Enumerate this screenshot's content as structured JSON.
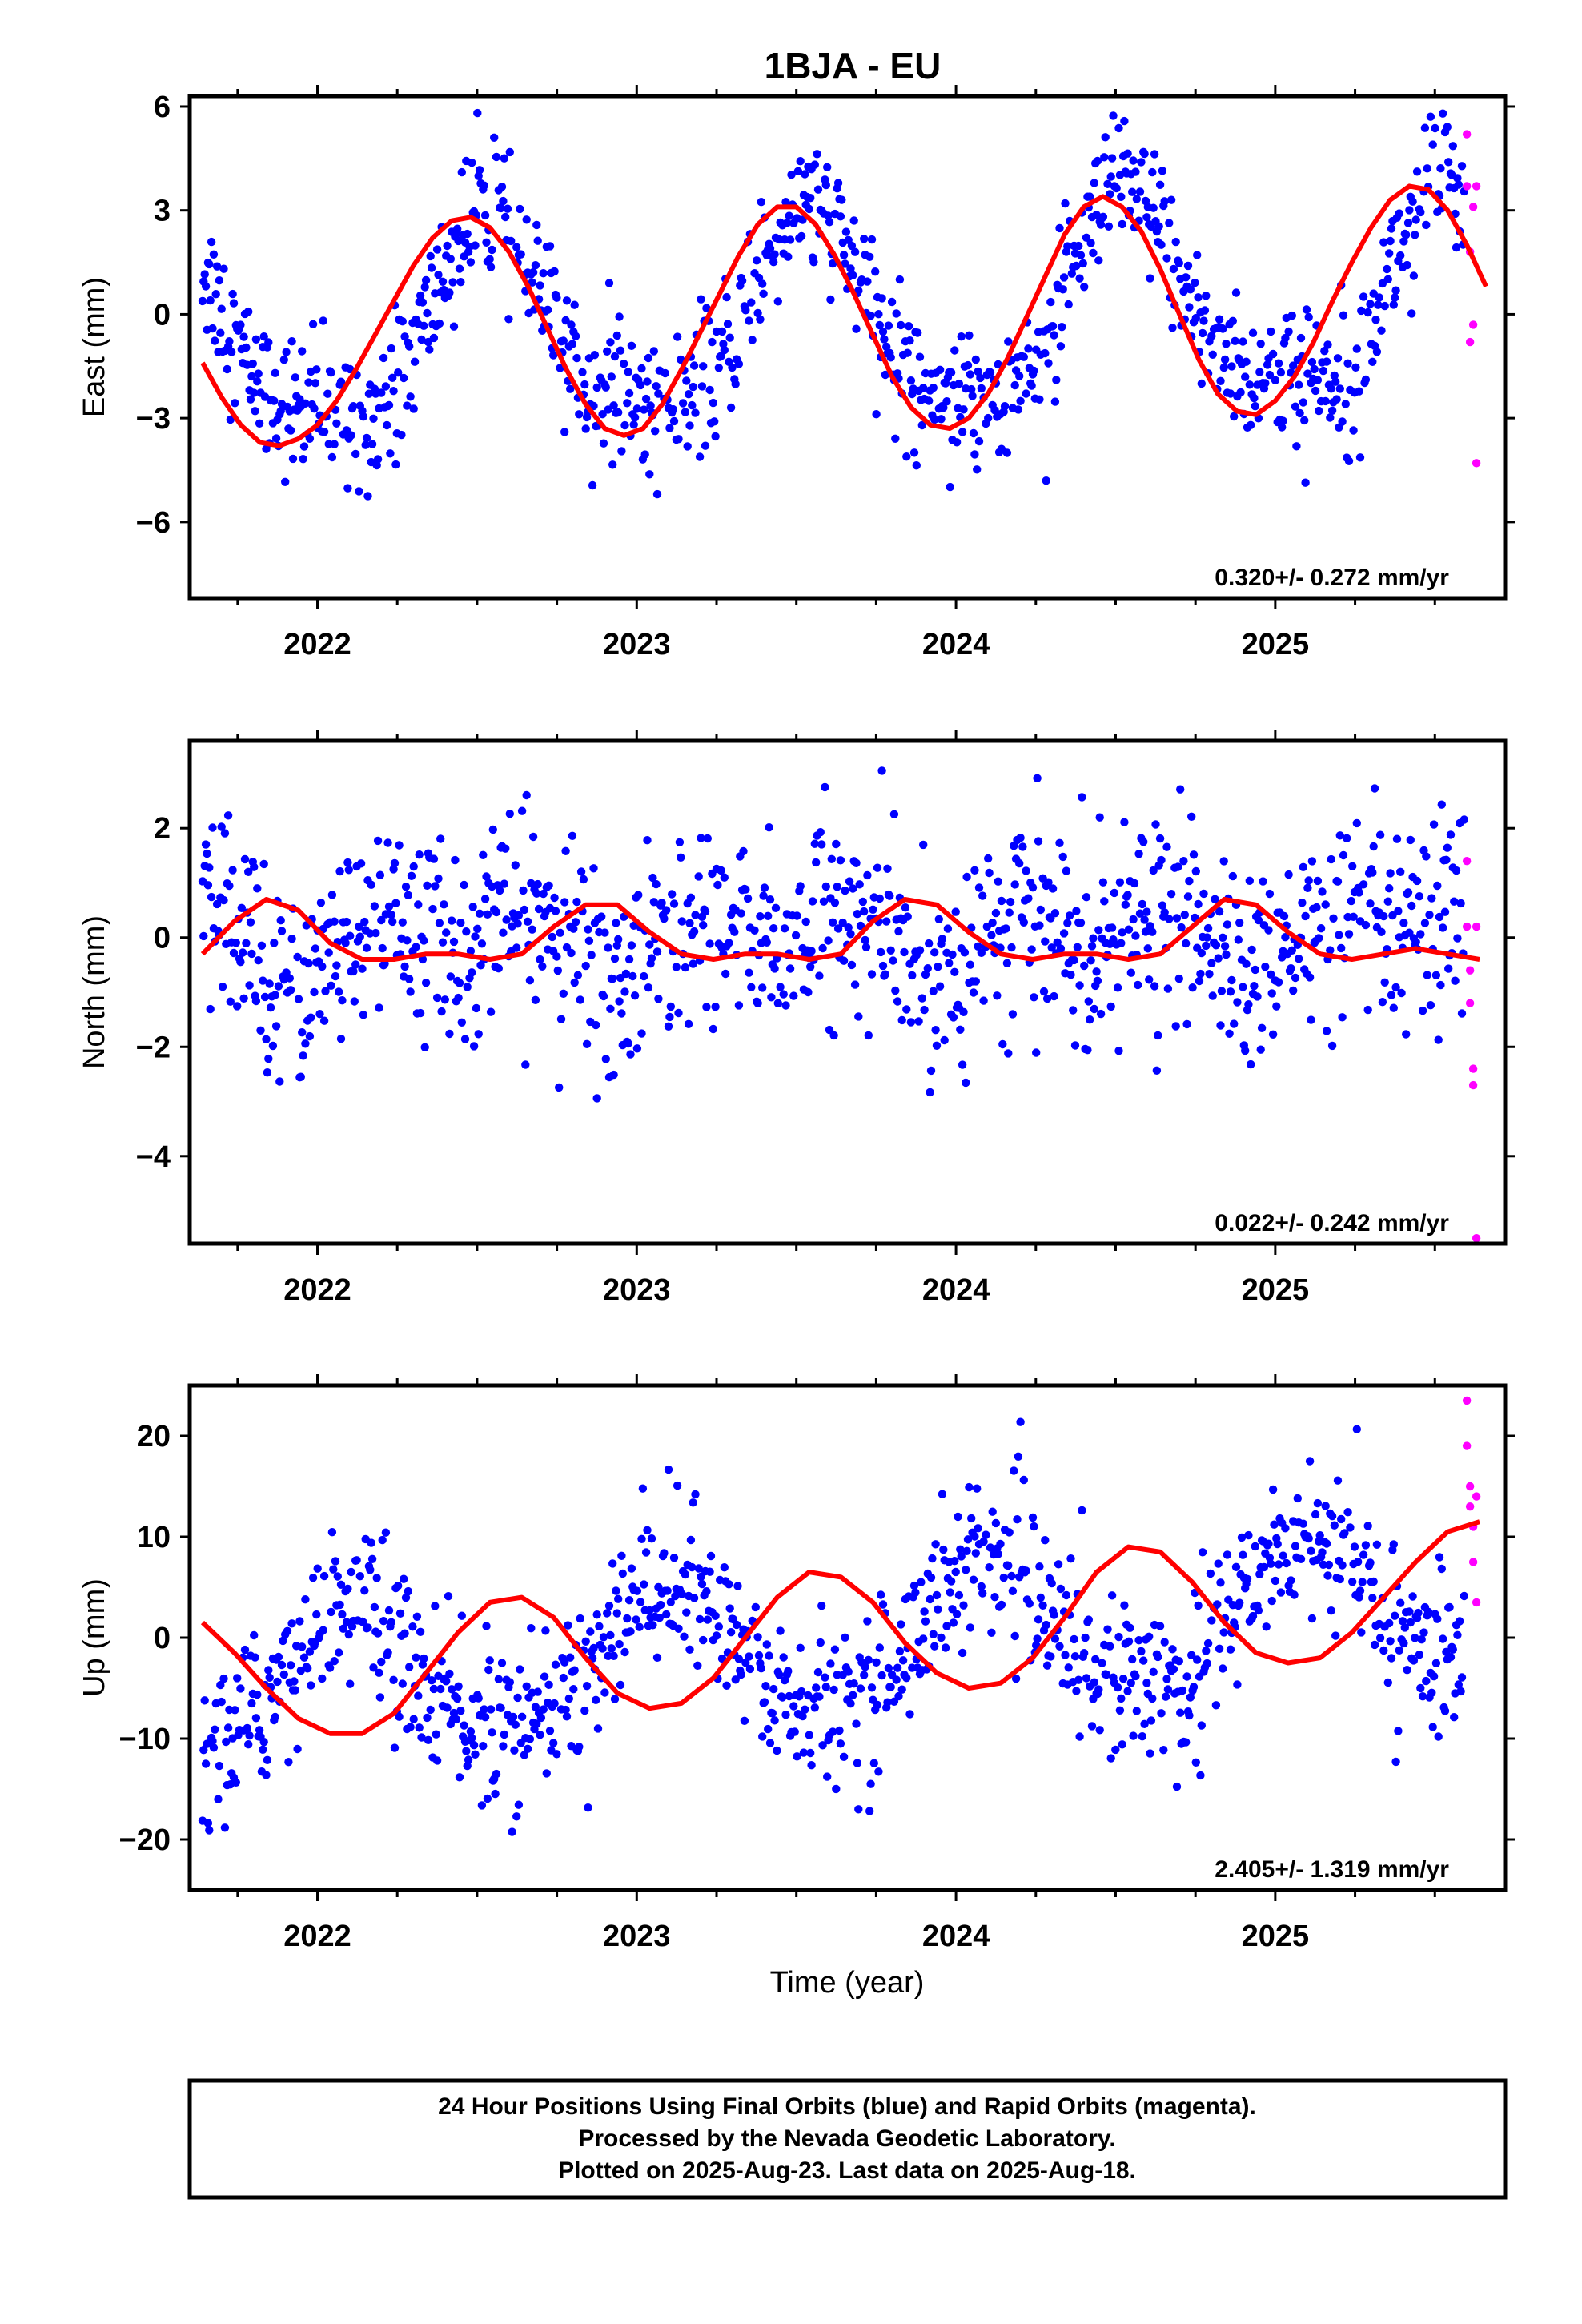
{
  "title": "1BJA - EU",
  "xlabel": "Time (year)",
  "footer": {
    "line1": "24 Hour Positions Using Final Orbits (blue) and Rapid Orbits (magenta).",
    "line2": "Processed by the Nevada Geodetic Laboratory.",
    "line3": "Plotted on 2025-Aug-23. Last data on 2025-Aug-18."
  },
  "colors": {
    "final": "#0000ff",
    "rapid": "#ff00ff",
    "fit": "#ff0000",
    "axis": "#000000"
  },
  "chart_data": [
    {
      "type": "scatter",
      "name": "east",
      "ylabel": "East (mm)",
      "xlim": [
        2021.6,
        2025.72
      ],
      "ylim": [
        -8.2,
        6.3
      ],
      "yticks": [
        -6,
        -3,
        0,
        3,
        6
      ],
      "ytick_labels": [
        "−6",
        "−3",
        "0",
        "3",
        "6"
      ],
      "xticks": [
        2022,
        2023,
        2024,
        2025
      ],
      "xtick_labels": [
        "2022",
        "2023",
        "2024",
        "2025"
      ],
      "rate_label": "0.320+/- 0.272 mm/yr",
      "fit": {
        "offset": -0.27,
        "rate": 0.32,
        "a1": 2.8,
        "p1": -1.8,
        "a2": 0.7,
        "p2": 1.3,
        "t0": 2023.5
      },
      "noise": 1.0,
      "series": [
        {
          "x": [
            2021.64,
            2021.7,
            2021.76,
            2021.82,
            2021.88,
            2021.94,
            2022.0,
            2022.06,
            2022.12,
            2022.18,
            2022.24,
            2022.3,
            2022.36,
            2022.42,
            2022.48,
            2022.54,
            2022.6,
            2022.66,
            2022.72,
            2022.78,
            2022.84,
            2022.9,
            2022.96,
            2023.02,
            2023.08,
            2023.14,
            2023.2,
            2023.26,
            2023.32,
            2023.38,
            2023.44,
            2023.5,
            2023.56,
            2023.62,
            2023.68,
            2023.74,
            2023.8,
            2023.86,
            2023.92,
            2023.98,
            2024.04,
            2024.1,
            2024.16,
            2024.22,
            2024.28,
            2024.34,
            2024.4,
            2024.46,
            2024.52,
            2024.58,
            2024.64,
            2024.7,
            2024.76,
            2024.82,
            2024.88,
            2024.94,
            2025.0,
            2025.06,
            2025.12,
            2025.18,
            2025.24,
            2025.3,
            2025.36,
            2025.42,
            2025.48,
            2025.54,
            2025.6,
            2025.66
          ],
          "y": [
            -1.4,
            -2.4,
            -3.2,
            -3.7,
            -3.8,
            -3.6,
            -3.2,
            -2.5,
            -1.6,
            -0.6,
            0.4,
            1.4,
            2.2,
            2.7,
            2.8,
            2.5,
            1.8,
            0.8,
            -0.4,
            -1.6,
            -2.6,
            -3.3,
            -3.5,
            -3.3,
            -2.6,
            -1.6,
            -0.5,
            0.6,
            1.7,
            2.6,
            3.1,
            3.1,
            2.6,
            1.7,
            0.6,
            -0.6,
            -1.8,
            -2.7,
            -3.2,
            -3.3,
            -3.0,
            -2.3,
            -1.3,
            -0.1,
            1.1,
            2.3,
            3.1,
            3.4,
            3.1,
            2.4,
            1.3,
            0.0,
            -1.3,
            -2.3,
            -2.8,
            -2.9,
            -2.5,
            -1.8,
            -0.8,
            0.4,
            1.5,
            2.5,
            3.3,
            3.7,
            3.6,
            3.0,
            2.0,
            0.8
          ]
        }
      ]
    },
    {
      "type": "scatter",
      "name": "north",
      "ylabel": "North (mm)",
      "xlim": [
        2021.6,
        2025.72
      ],
      "ylim": [
        -5.6,
        3.6
      ],
      "yticks": [
        -4,
        -2,
        0,
        2
      ],
      "ytick_labels": [
        "−4",
        "−2",
        "0",
        "2"
      ],
      "xticks": [
        2022,
        2023,
        2024,
        2025
      ],
      "xtick_labels": [
        "2022",
        "2023",
        "2024",
        "2025"
      ],
      "rate_label": "0.022+/- 0.242 mm/yr",
      "fit": {
        "offset": -0.05,
        "rate": 0.022,
        "a1": 0.28,
        "p1": -1.3,
        "a2": 0.38,
        "p2": -0.76,
        "t0": 2023.5
      },
      "noise": 0.9,
      "series": [
        {
          "x": [
            2021.64,
            2021.74,
            2021.84,
            2021.94,
            2022.04,
            2022.14,
            2022.24,
            2022.34,
            2022.44,
            2022.54,
            2022.64,
            2022.74,
            2022.84,
            2022.94,
            2023.04,
            2023.14,
            2023.24,
            2023.34,
            2023.44,
            2023.54,
            2023.64,
            2023.74,
            2023.84,
            2023.94,
            2024.04,
            2024.14,
            2024.24,
            2024.34,
            2024.44,
            2024.54,
            2024.64,
            2024.74,
            2024.84,
            2024.94,
            2025.04,
            2025.14,
            2025.24,
            2025.34,
            2025.44,
            2025.54,
            2025.64
          ],
          "y": [
            -0.3,
            0.3,
            0.7,
            0.5,
            -0.1,
            -0.4,
            -0.4,
            -0.3,
            -0.3,
            -0.4,
            -0.3,
            0.2,
            0.6,
            0.6,
            0.1,
            -0.3,
            -0.4,
            -0.3,
            -0.3,
            -0.4,
            -0.3,
            0.3,
            0.7,
            0.6,
            0.1,
            -0.3,
            -0.4,
            -0.3,
            -0.3,
            -0.4,
            -0.3,
            0.2,
            0.7,
            0.6,
            0.1,
            -0.3,
            -0.4,
            -0.3,
            -0.2,
            -0.3,
            -0.4
          ]
        }
      ]
    },
    {
      "type": "scatter",
      "name": "up",
      "ylabel": "Up (mm)",
      "xlim": [
        2021.6,
        2025.72
      ],
      "ylim": [
        -25,
        25
      ],
      "yticks": [
        -20,
        -10,
        0,
        10,
        20
      ],
      "ytick_labels": [
        "−20",
        "−10",
        "0",
        "10",
        "20"
      ],
      "xticks": [
        2022,
        2023,
        2024,
        2025
      ],
      "xtick_labels": [
        "2022",
        "2023",
        "2024",
        "2025"
      ],
      "rate_label": "2.405+/- 1.319 mm/yr",
      "fit": {
        "offset": -1.0,
        "rate": 2.405,
        "a1": 6.8,
        "p1": 0.98,
        "a2": 0.9,
        "p2": 0.5,
        "t0": 2023.5
      },
      "noise": 4.0,
      "series": [
        {
          "x": [
            2021.64,
            2021.74,
            2021.84,
            2021.94,
            2022.04,
            2022.14,
            2022.24,
            2022.34,
            2022.44,
            2022.54,
            2022.64,
            2022.74,
            2022.84,
            2022.94,
            2023.04,
            2023.14,
            2023.24,
            2023.34,
            2023.44,
            2023.54,
            2023.64,
            2023.74,
            2023.84,
            2023.94,
            2024.04,
            2024.14,
            2024.24,
            2024.34,
            2024.44,
            2024.54,
            2024.64,
            2024.74,
            2024.84,
            2024.94,
            2025.04,
            2025.14,
            2025.24,
            2025.34,
            2025.44,
            2025.54,
            2025.64
          ],
          "y": [
            1.5,
            -1.5,
            -5.0,
            -8.0,
            -9.5,
            -9.5,
            -7.5,
            -3.5,
            0.5,
            3.5,
            4.0,
            2.0,
            -2.0,
            -5.5,
            -7.0,
            -6.5,
            -4.0,
            0.0,
            4.0,
            6.5,
            6.0,
            3.5,
            -0.5,
            -3.5,
            -5.0,
            -4.5,
            -2.0,
            2.0,
            6.5,
            9.0,
            8.5,
            5.5,
            1.5,
            -1.5,
            -2.5,
            -2.0,
            0.5,
            4.0,
            7.5,
            10.5,
            11.5
          ]
        }
      ]
    }
  ],
  "rapid": [
    {
      "x": [
        2025.6,
        2025.6,
        2025.61,
        2025.61,
        2025.62,
        2025.62,
        2025.63,
        2025.63
      ],
      "y": [
        3.7,
        5.2,
        1.8,
        -0.8,
        3.1,
        -0.3,
        -4.3,
        3.7
      ]
    },
    {
      "x": [
        2025.6,
        2025.6,
        2025.61,
        2025.61,
        2025.62,
        2025.62,
        2025.63,
        2025.63
      ],
      "y": [
        1.4,
        0.2,
        -0.6,
        -1.2,
        -2.7,
        -2.4,
        -5.5,
        0.2
      ]
    },
    {
      "x": [
        2025.6,
        2025.6,
        2025.61,
        2025.61,
        2025.62,
        2025.62,
        2025.63,
        2025.63
      ],
      "y": [
        23.5,
        19.0,
        15.0,
        13.0,
        11.0,
        7.5,
        3.5,
        14.0
      ]
    }
  ]
}
